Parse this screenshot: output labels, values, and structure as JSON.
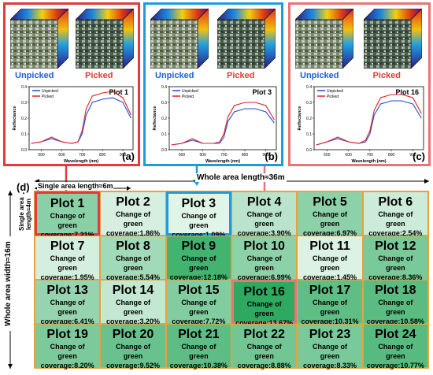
{
  "panels": [
    {
      "id": "a",
      "letter": "(a)",
      "title": "Plot 1",
      "unpicked": "Unpicked",
      "picked": "Picked",
      "border": "#e23b3b"
    },
    {
      "id": "b",
      "letter": "(b)",
      "title": "Plot 3",
      "unpicked": "Unpicked",
      "picked": "Picked",
      "border": "#1f9cd8"
    },
    {
      "id": "c",
      "letter": "(c)",
      "title": "Plot 16",
      "unpicked": "Unpicked",
      "picked": "Picked",
      "border": "#e87575"
    }
  ],
  "chart_axes": {
    "ylabel": "Reflectance",
    "xlabel": "Wavelength (nm)",
    "yticks": [
      "0.0",
      "0.1",
      "0.2",
      "0.3",
      "0.4"
    ],
    "xticks": [
      "500",
      "600",
      "700",
      "800",
      "900"
    ],
    "legend": [
      "Unpicked",
      "Picked"
    ]
  },
  "colors": {
    "unpicked": "#1f4fd6",
    "picked": "#e02020",
    "unpicked_label": "#1f5fd6",
    "picked_label": "#e23b3b"
  },
  "chart_data": [
    {
      "type": "line",
      "title": "Plot 1",
      "x": [
        450,
        500,
        550,
        600,
        650,
        680,
        700,
        720,
        750,
        800,
        850,
        900,
        940
      ],
      "series": [
        {
          "name": "Unpicked",
          "values": [
            0.04,
            0.05,
            0.07,
            0.05,
            0.04,
            0.05,
            0.1,
            0.22,
            0.3,
            0.32,
            0.33,
            0.3,
            0.2
          ]
        },
        {
          "name": "Picked",
          "values": [
            0.04,
            0.05,
            0.08,
            0.05,
            0.04,
            0.05,
            0.12,
            0.26,
            0.34,
            0.36,
            0.37,
            0.33,
            0.22
          ]
        }
      ],
      "ylim": [
        0,
        0.4
      ],
      "xlim": [
        440,
        950
      ]
    },
    {
      "type": "line",
      "title": "Plot 3",
      "x": [
        450,
        500,
        550,
        600,
        650,
        680,
        700,
        720,
        750,
        800,
        850,
        900,
        940
      ],
      "series": [
        {
          "name": "Unpicked",
          "values": [
            0.03,
            0.04,
            0.06,
            0.04,
            0.04,
            0.04,
            0.08,
            0.18,
            0.24,
            0.26,
            0.26,
            0.24,
            0.17
          ]
        },
        {
          "name": "Picked",
          "values": [
            0.03,
            0.04,
            0.07,
            0.04,
            0.04,
            0.05,
            0.1,
            0.21,
            0.28,
            0.3,
            0.3,
            0.28,
            0.19
          ]
        }
      ],
      "ylim": [
        0,
        0.4
      ],
      "xlim": [
        440,
        950
      ]
    },
    {
      "type": "line",
      "title": "Plot 16",
      "x": [
        450,
        500,
        550,
        600,
        650,
        680,
        700,
        720,
        750,
        800,
        850,
        900,
        940
      ],
      "series": [
        {
          "name": "Unpicked",
          "values": [
            0.03,
            0.05,
            0.07,
            0.05,
            0.04,
            0.05,
            0.1,
            0.22,
            0.29,
            0.31,
            0.31,
            0.29,
            0.2
          ]
        },
        {
          "name": "Picked",
          "values": [
            0.03,
            0.05,
            0.08,
            0.05,
            0.04,
            0.06,
            0.12,
            0.25,
            0.33,
            0.35,
            0.35,
            0.33,
            0.23
          ]
        }
      ],
      "ylim": [
        0,
        0.4
      ],
      "xlim": [
        440,
        950
      ]
    }
  ],
  "field": {
    "letter": "(d)",
    "whole_length": "Whole area length≈36m",
    "single_length": "Single area length≈6m",
    "whole_width": "Whole area width≈16m",
    "single_width": "Single area length≈4m",
    "change_prefix": "Change of",
    "plots": [
      {
        "name": "Plot 1",
        "coverage": "green coverage:7.21%",
        "value": 7.21
      },
      {
        "name": "Plot 2",
        "coverage": "green coverage:1.86%",
        "value": 1.86
      },
      {
        "name": "Plot 3",
        "coverage": "green coverage:1.09%",
        "value": 1.09
      },
      {
        "name": "Plot 4",
        "coverage": "green coverage:3.90%",
        "value": 3.9
      },
      {
        "name": "Plot 5",
        "coverage": "green coverage:6.97%",
        "value": 6.97
      },
      {
        "name": "Plot 6",
        "coverage": "green coverage:2.54%",
        "value": 2.54
      },
      {
        "name": "Plot 7",
        "coverage": "green coverage:1.95%",
        "value": 1.95
      },
      {
        "name": "Plot 8",
        "coverage": "green coverage:5.54%",
        "value": 5.54
      },
      {
        "name": "Plot 9",
        "coverage": "green coverage:12.18%",
        "value": 12.18
      },
      {
        "name": "Plot 10",
        "coverage": "green coverage:6.99%",
        "value": 6.99
      },
      {
        "name": "Plot 11",
        "coverage": "green coverage:1.45%",
        "value": 1.45
      },
      {
        "name": "Plot 12",
        "coverage": "green coverage:8.36%",
        "value": 8.36
      },
      {
        "name": "Plot 13",
        "coverage": "green coverage:6.41%",
        "value": 6.41
      },
      {
        "name": "Plot 14",
        "coverage": "green coverage:3.20%",
        "value": 3.2
      },
      {
        "name": "Plot 15",
        "coverage": "green coverage:7.72%",
        "value": 7.72
      },
      {
        "name": "Plot 16",
        "coverage": "green coverage:13.67%",
        "value": 13.67
      },
      {
        "name": "Plot 17",
        "coverage": "green coverage:10.31%",
        "value": 10.31
      },
      {
        "name": "Plot 18",
        "coverage": "green coverage:10.58%",
        "value": 10.58
      },
      {
        "name": "Plot 19",
        "coverage": "green coverage:8.20%",
        "value": 8.2
      },
      {
        "name": "Plot 20",
        "coverage": "green coverage:9.52%",
        "value": 9.52
      },
      {
        "name": "Plot 21",
        "coverage": "green coverage:10.38%",
        "value": 10.38
      },
      {
        "name": "Plot 22",
        "coverage": "green coverage:8.88%",
        "value": 8.88
      },
      {
        "name": "Plot 23",
        "coverage": "green coverage:8.33%",
        "value": 8.33
      },
      {
        "name": "Plot 24",
        "coverage": "green coverage:10.77%",
        "value": 10.77
      }
    ]
  }
}
